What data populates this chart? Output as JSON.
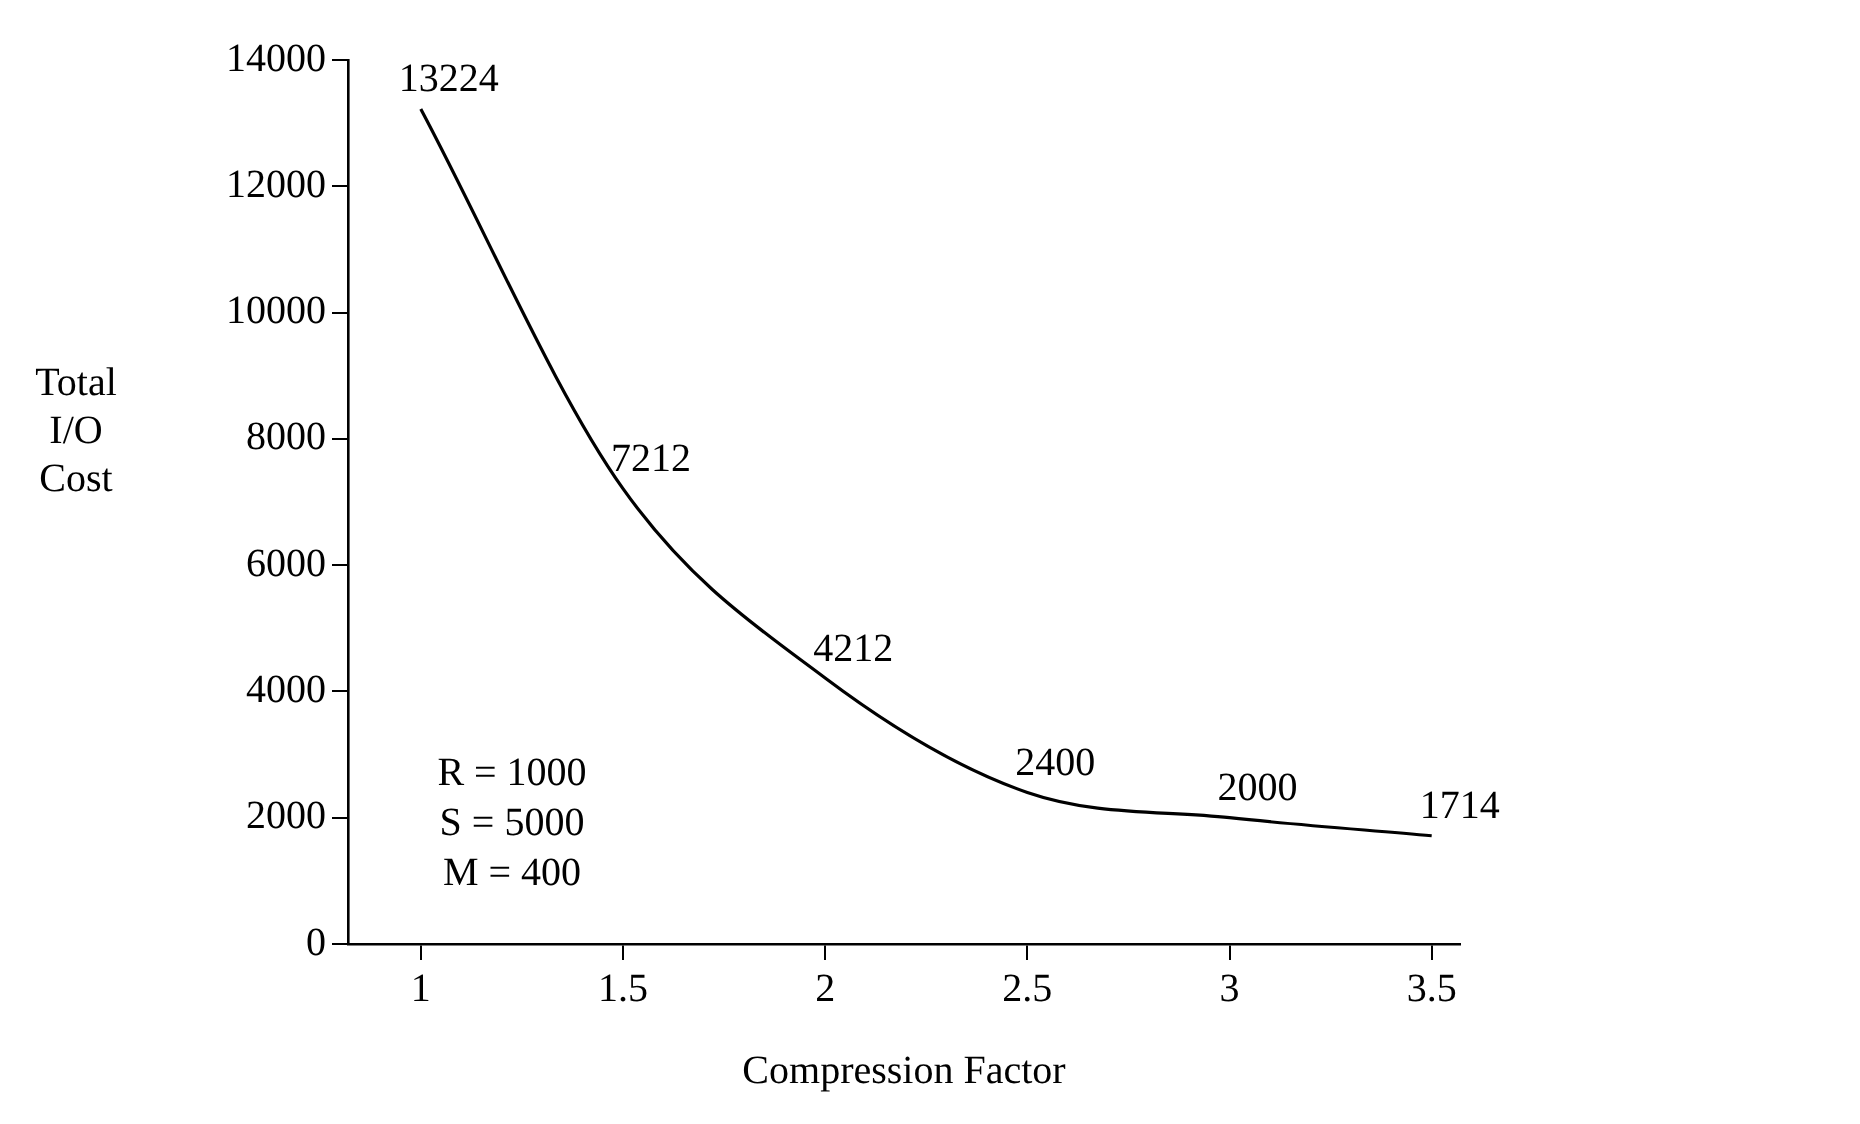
{
  "chart_data": {
    "type": "line",
    "xlabel": "Compression Factor",
    "ylabel": "Total I/O Cost",
    "x": [
      1,
      1.5,
      2,
      2.5,
      3,
      3.5
    ],
    "series": [
      {
        "color": "#000000",
        "values": [
          13224,
          7212,
          4212,
          2400,
          2000,
          1714
        ]
      }
    ],
    "xlim": [
      0.82,
      3.57
    ],
    "xticks": [
      1,
      1.5,
      2,
      2.5,
      3,
      3.5
    ],
    "ylim": [
      0,
      14000
    ],
    "yticks": [
      0,
      2000,
      4000,
      6000,
      8000,
      10000,
      12000,
      14000
    ],
    "data_labels": true,
    "grid": false,
    "legend": false,
    "marker": "none",
    "line_style": "solid",
    "annotations": [
      "R = 1000",
      "S = 5000",
      "M = 400"
    ]
  }
}
